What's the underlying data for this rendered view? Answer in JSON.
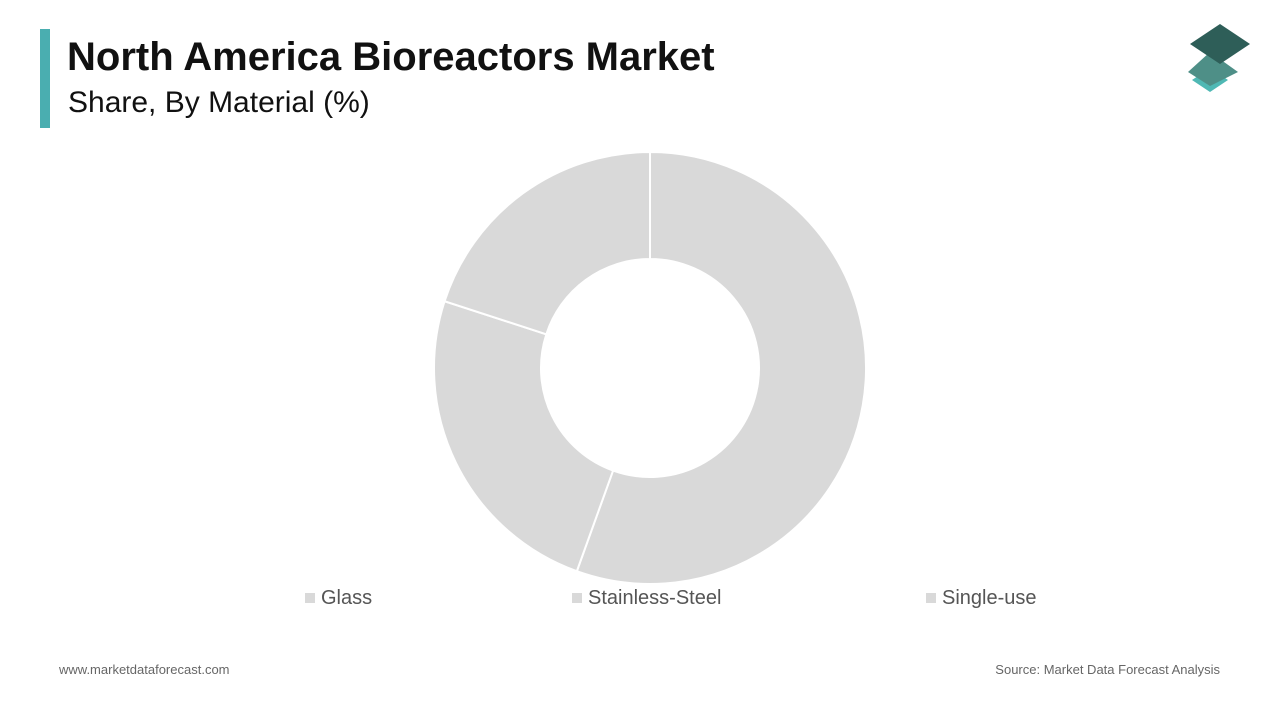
{
  "header": {
    "title": "North America Bioreactors Market",
    "subtitle": "Share, By Material (%)"
  },
  "colors": {
    "accent": "#4aaeb0",
    "slice": "#d9d9d9",
    "logo_top": "#2e5e58",
    "logo_mid": "#4e8f87",
    "logo_bottom": "#4fb8b4"
  },
  "logo": {
    "icon": "stacked-layers-icon"
  },
  "chart_data": {
    "type": "pie",
    "subtype": "donut",
    "title": "North America Bioreactors Market",
    "subtitle": "Share, By Material (%)",
    "categories": [
      "Glass",
      "Stainless-Steel",
      "Single-use"
    ],
    "values": [
      55.5,
      24.5,
      20
    ],
    "legend_position": "bottom",
    "start_angle_deg": 0,
    "direction": "clockwise"
  },
  "footer": {
    "website": "www.marketdataforecast.com",
    "source": "Source: Market Data Forecast Analysis"
  }
}
